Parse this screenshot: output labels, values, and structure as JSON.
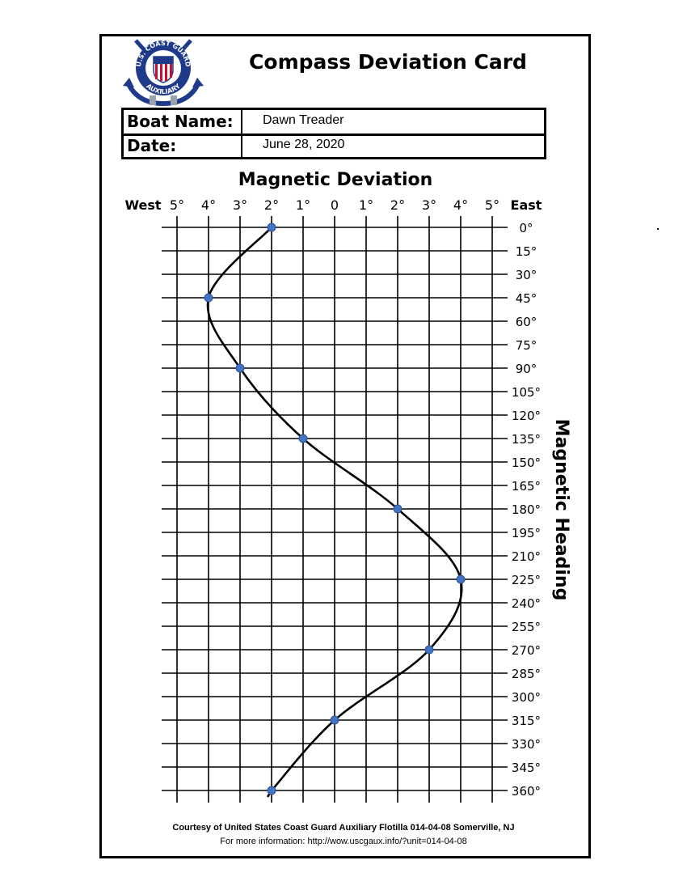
{
  "card": {
    "title": "Compass Deviation Card",
    "boat_name_label": "Boat Name:",
    "boat_name": "Dawn Treader",
    "date_label": "Date:",
    "date": "June 28, 2020"
  },
  "logo": {
    "ring_top": "U.S. COAST GUARD",
    "ring_bottom": "AUXILIARY",
    "colors": {
      "blue": "#1f3a8a",
      "red": "#c8102e",
      "gray": "#9aa3ad"
    }
  },
  "chart_data": {
    "type": "line",
    "title": "Magnetic Deviation",
    "xlabel": "",
    "ylabel": "Magnetic Heading",
    "x_left_label": "West",
    "x_right_label": "East",
    "x_tick_labels": [
      "5°",
      "4°",
      "3°",
      "2°",
      "1°",
      "0",
      "1°",
      "2°",
      "3°",
      "4°",
      "5°"
    ],
    "y_tick_labels": [
      "0°",
      "15°",
      "30°",
      "45°",
      "60°",
      "75°",
      "90°",
      "105°",
      "120°",
      "135°",
      "150°",
      "165°",
      "180°",
      "195°",
      "210°",
      "225°",
      "240°",
      "255°",
      "270°",
      "285°",
      "300°",
      "315°",
      "330°",
      "345°",
      "360°"
    ],
    "xlim": [
      -5,
      5
    ],
    "ylim": [
      0,
      360
    ],
    "grid": true,
    "marker_color": "#4472c4",
    "line_color": "#000000",
    "series": [
      {
        "points": [
          {
            "heading": 0,
            "deviation": -2
          },
          {
            "heading": 45,
            "deviation": -4
          },
          {
            "heading": 90,
            "deviation": -3
          },
          {
            "heading": 135,
            "deviation": -1
          },
          {
            "heading": 180,
            "deviation": 2
          },
          {
            "heading": 225,
            "deviation": 4
          },
          {
            "heading": 270,
            "deviation": 3
          },
          {
            "heading": 315,
            "deviation": 0
          },
          {
            "heading": 360,
            "deviation": -2
          }
        ]
      }
    ]
  },
  "footer": {
    "line1": "Courtesy of United States Coast Guard Auxiliary Flotilla 014-04-08 Somerville, NJ",
    "line2": "For more information:   http://wow.uscgaux.info/?unit=014-04-08"
  }
}
